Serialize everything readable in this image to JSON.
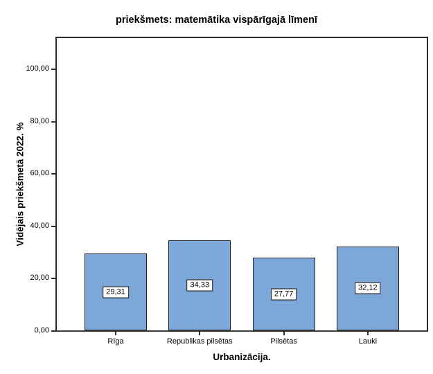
{
  "chart_data": {
    "type": "bar",
    "title": "priekšmets: matemātika vispārīgajā līmenī",
    "xlabel": "Urbanizācija.",
    "ylabel": "Vidējais priekšmetā 2022. %",
    "categories": [
      "Rīga",
      "Republikas pilsētas",
      "Pilsētas",
      "Lauki"
    ],
    "values": [
      29.31,
      34.33,
      27.77,
      32.12
    ],
    "value_labels": [
      "29,31",
      "34,33",
      "27,77",
      "32,12"
    ],
    "ytick_values": [
      0,
      20,
      40,
      60,
      80,
      100
    ],
    "ytick_labels": [
      "0,00",
      "20,00",
      "40,00",
      "60,00",
      "80,00",
      "100,00"
    ],
    "ylim": [
      0,
      112.5
    ],
    "grid": false,
    "legend": false,
    "bar_color": "#7CA7D8",
    "bar_border_color": "#1f1f1f",
    "axis_color": "#2e2e2e",
    "background_color": "#ffffff"
  }
}
